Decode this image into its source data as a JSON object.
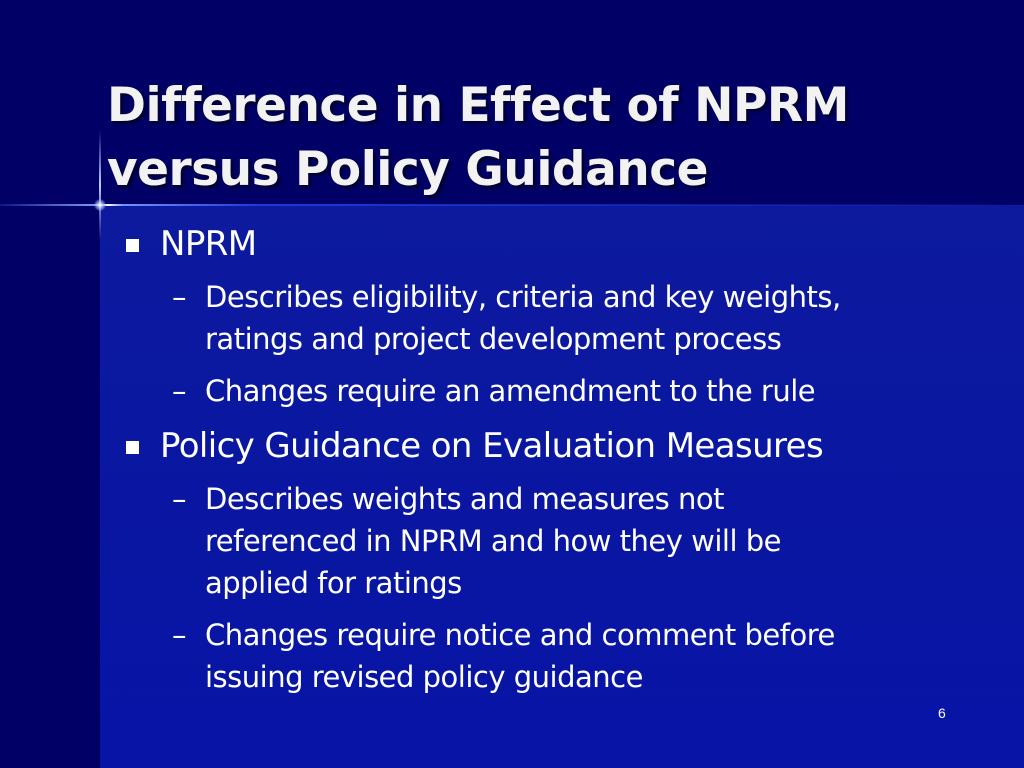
{
  "slide": {
    "title_lines": [
      "Difference in Effect of NPRM",
      "versus Policy Guidance"
    ],
    "bullets": [
      {
        "label": "NPRM",
        "sub": [
          {
            "lines": [
              "Describes eligibility, criteria and key weights,",
              "ratings and project development process"
            ]
          },
          {
            "lines": [
              "Changes require an amendment to the rule"
            ]
          }
        ]
      },
      {
        "label": "Policy Guidance on Evaluation Measures",
        "sub": [
          {
            "lines": [
              "Describes weights and measures not",
              "referenced in NPRM and how they will be",
              "applied for ratings"
            ]
          },
          {
            "lines": [
              "Changes require notice and comment before",
              "issuing revised policy guidance"
            ]
          }
        ]
      }
    ],
    "dash_glyph": "–",
    "page_number": "6"
  },
  "colors": {
    "background": "#000066",
    "panel": "#0a17a0",
    "text": "#ffffff"
  }
}
